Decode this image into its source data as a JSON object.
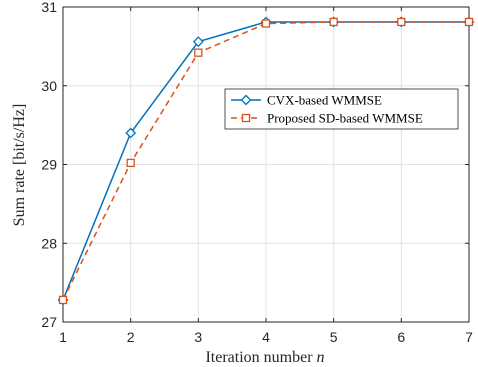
{
  "chart_data": {
    "type": "line",
    "x": [
      1,
      2,
      3,
      4,
      5,
      6,
      7
    ],
    "xlabel": "Iteration number n",
    "ylabel": "Sum rate [bit/s/Hz]",
    "xlim": [
      1,
      7
    ],
    "ylim": [
      27,
      31
    ],
    "xticks": [
      1,
      2,
      3,
      4,
      5,
      6,
      7
    ],
    "yticks": [
      27,
      28,
      29,
      30,
      31
    ],
    "grid": true,
    "legend_position": "upper-right-center",
    "series": [
      {
        "name": "CVX-based WMMSE",
        "values": [
          27.28,
          29.4,
          30.56,
          30.81,
          30.81,
          30.81,
          30.81
        ],
        "color": "#0072BD",
        "marker": "diamond",
        "line_style": "solid"
      },
      {
        "name": "Proposed SD-based WMMSE",
        "values": [
          27.28,
          29.02,
          30.42,
          30.79,
          30.81,
          30.81,
          30.81
        ],
        "color": "#D95319",
        "marker": "square",
        "line_style": "dashed"
      }
    ]
  }
}
